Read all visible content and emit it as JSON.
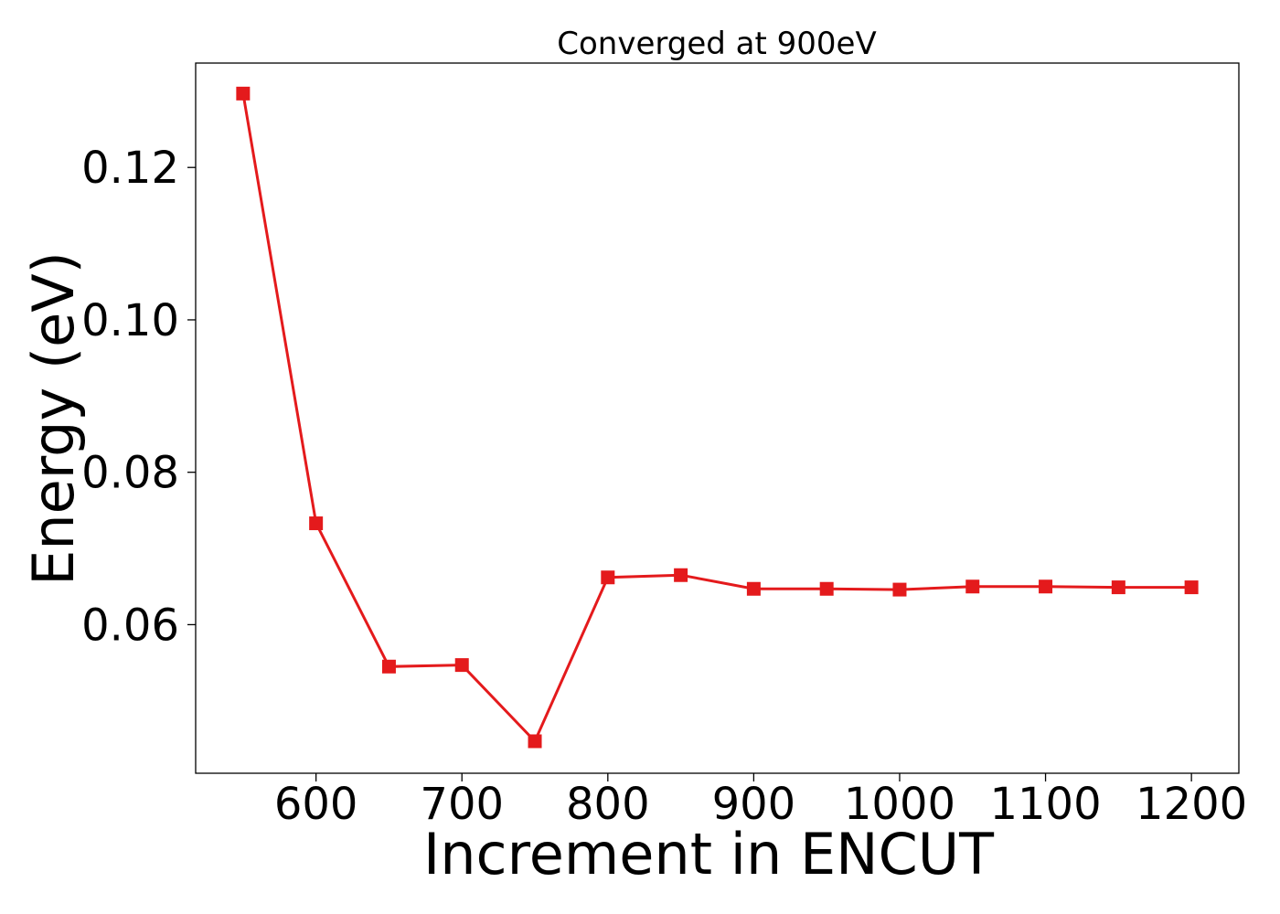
{
  "chart_data": {
    "type": "line",
    "title": "Converged at 900eV",
    "xlabel": "Increment in ENCUT",
    "ylabel": "Energy (eV)",
    "x": [
      550,
      600,
      650,
      700,
      750,
      800,
      850,
      900,
      950,
      1000,
      1050,
      1100,
      1150,
      1200
    ],
    "series": [
      {
        "values": [
          0.1297,
          0.0733,
          0.0545,
          0.0547,
          0.0447,
          0.0662,
          0.0665,
          0.0647,
          0.0647,
          0.0646,
          0.065,
          0.065,
          0.0649,
          0.0649
        ],
        "color": "#e41a1c",
        "marker": "square"
      }
    ],
    "xlim": [
      517.5,
      1232.5
    ],
    "ylim": [
      0.0405,
      0.1337
    ],
    "xticks": [
      600,
      700,
      800,
      900,
      1000,
      1100,
      1200
    ],
    "xtick_labels": [
      "600",
      "700",
      "800",
      "900",
      "1000",
      "1100",
      "1200"
    ],
    "yticks": [
      0.06,
      0.08,
      0.1,
      0.12
    ],
    "ytick_labels": [
      "0.06",
      "0.08",
      "0.10",
      "0.12"
    ],
    "grid": false,
    "legend": "none"
  }
}
